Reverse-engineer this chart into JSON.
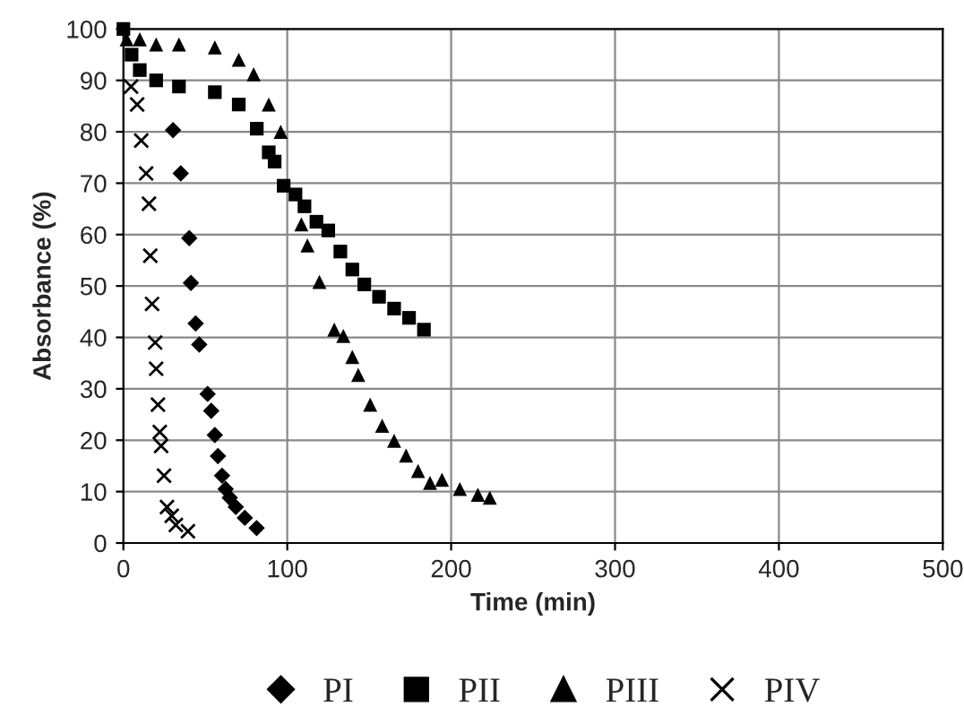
{
  "chart_data": {
    "type": "scatter",
    "xlabel": "Time (min)",
    "ylabel": "Absorbance (%)",
    "xlim": [
      0,
      500
    ],
    "xticks": [
      0,
      100,
      200,
      300,
      400,
      500
    ],
    "ylim": [
      0,
      100
    ],
    "yticks": [
      0,
      10,
      20,
      30,
      40,
      50,
      60,
      70,
      80,
      90,
      100
    ],
    "grid": true,
    "legend": "bottom",
    "series": [
      {
        "name": "PI",
        "color": "#000000",
        "marker": "diamond",
        "x": [
          30.3,
          35,
          40.2,
          41.2,
          44.1,
          46.3,
          51.4,
          53.6,
          55.8,
          57.7,
          60.2,
          62.4,
          64.9,
          68.6,
          74.1,
          81.3
        ],
        "values": [
          80.3,
          71.9,
          59.3,
          50.6,
          42.7,
          38.6,
          29,
          25.7,
          21,
          16.9,
          13.1,
          10.5,
          8.8,
          7,
          4.9,
          2.9
        ]
      },
      {
        "name": "PII",
        "color": "#000000",
        "marker": "square",
        "x": [
          0,
          5,
          10,
          20,
          33.9,
          55.8,
          70.4,
          81.4,
          88.7,
          92.3,
          97.8,
          105,
          110.5,
          117.8,
          125,
          132.4,
          139.7,
          147,
          156,
          165.2,
          174.3,
          183.4
        ],
        "values": [
          100,
          95,
          92,
          90,
          88.8,
          87.7,
          85.3,
          80.6,
          76,
          74.2,
          69.5,
          67.8,
          65.5,
          62.5,
          60.8,
          56.7,
          53.2,
          50.3,
          47.9,
          45.6,
          43.8,
          41.5
        ]
      },
      {
        "name": "PIII",
        "color": "#000000",
        "marker": "triangle",
        "x": [
          2,
          10,
          20,
          33.9,
          55.8,
          70.4,
          79.5,
          88.7,
          96,
          108.6,
          112.3,
          119.6,
          128.7,
          134.2,
          139.7,
          143.3,
          150.6,
          157.9,
          165.2,
          172.5,
          179.8,
          187.1,
          194.4,
          205.3,
          216.3,
          223.6
        ],
        "values": [
          98,
          98,
          97,
          97,
          96.4,
          94,
          91.2,
          85.3,
          80,
          62,
          57.9,
          50.8,
          41.5,
          40.3,
          36.2,
          32.7,
          26.9,
          22.8,
          19.9,
          17,
          14,
          11.7,
          12.3,
          10.5,
          9.4,
          8.8
        ]
      },
      {
        "name": "PIV",
        "color": "#000000",
        "marker": "cross",
        "x": [
          4.7,
          8.4,
          10.9,
          13.9,
          15.6,
          16.4,
          17.5,
          19.4,
          20,
          21.1,
          22.2,
          23,
          24.8,
          26.6,
          29.5,
          32,
          39.4
        ],
        "values": [
          88.8,
          85.3,
          78.3,
          71.9,
          66,
          55.9,
          46.5,
          39,
          33.9,
          26.9,
          21.6,
          18.9,
          13.1,
          7,
          5.3,
          3.5,
          2.3
        ]
      }
    ]
  }
}
